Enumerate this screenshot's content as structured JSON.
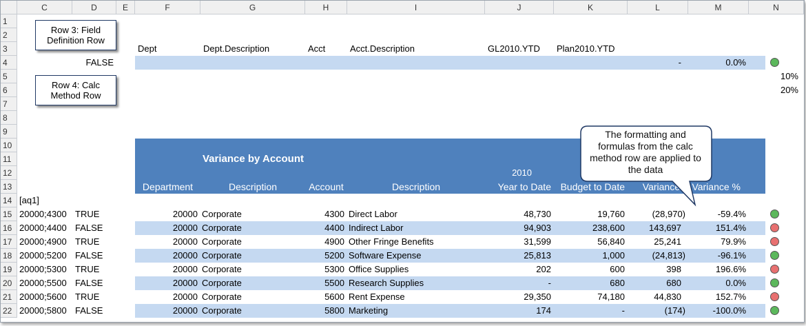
{
  "column_headers": [
    "C",
    "D",
    "E",
    "F",
    "G",
    "H",
    "I",
    "J",
    "K",
    "L",
    "M",
    "N"
  ],
  "row_numbers": [
    1,
    2,
    3,
    4,
    5,
    6,
    7,
    8,
    9,
    10,
    11,
    12,
    13,
    14,
    15,
    16,
    17,
    18,
    19,
    20,
    21,
    22
  ],
  "field_definition_row": [
    "Dept",
    "Dept.Description",
    "Acct",
    "Acct.Description",
    "GL2010.YTD",
    "Plan2010.YTD"
  ],
  "calc_method_row": {
    "flag": "FALSE",
    "variance": "-",
    "variance_pct": "0.0%",
    "status_color": "#5cb85c"
  },
  "thresholds": [
    "10%",
    "20%"
  ],
  "report": {
    "title": "Variance by Account",
    "year": "2010",
    "columns": [
      "Department",
      "Description",
      "Account",
      "Description",
      "Year to Date",
      "Budget to Date",
      "Variance",
      "Variance %"
    ],
    "query_name": "[aq1]",
    "rows": [
      {
        "key": "20000;4300",
        "flag": "TRUE",
        "dept": 20000,
        "dept_desc": "Corporate",
        "account": 4300,
        "acct_desc": "Direct Labor",
        "ytd": "48,730",
        "budget": "19,760",
        "variance": "(28,970)",
        "variance_pct": "-59.4%",
        "status_color": "#5cb85c"
      },
      {
        "key": "20000;4400",
        "flag": "FALSE",
        "dept": 20000,
        "dept_desc": "Corporate",
        "account": 4400,
        "acct_desc": "Indirect Labor",
        "ytd": "94,903",
        "budget": "238,600",
        "variance": "143,697",
        "variance_pct": "151.4%",
        "status_color": "#e87070"
      },
      {
        "key": "20000;4900",
        "flag": "TRUE",
        "dept": 20000,
        "dept_desc": "Corporate",
        "account": 4900,
        "acct_desc": "Other Fringe Benefits",
        "ytd": "31,599",
        "budget": "56,840",
        "variance": "25,241",
        "variance_pct": "79.9%",
        "status_color": "#e87070"
      },
      {
        "key": "20000;5200",
        "flag": "FALSE",
        "dept": 20000,
        "dept_desc": "Corporate",
        "account": 5200,
        "acct_desc": "Software Expense",
        "ytd": "25,813",
        "budget": "1,000",
        "variance": "(24,813)",
        "variance_pct": "-96.1%",
        "status_color": "#5cb85c"
      },
      {
        "key": "20000;5300",
        "flag": "TRUE",
        "dept": 20000,
        "dept_desc": "Corporate",
        "account": 5300,
        "acct_desc": "Office Supplies",
        "ytd": "202",
        "budget": "600",
        "variance": "398",
        "variance_pct": "196.6%",
        "status_color": "#e87070"
      },
      {
        "key": "20000;5500",
        "flag": "FALSE",
        "dept": 20000,
        "dept_desc": "Corporate",
        "account": 5500,
        "acct_desc": "Research Supplies",
        "ytd": "-",
        "budget": "680",
        "variance": "680",
        "variance_pct": "0.0%",
        "status_color": "#5cb85c"
      },
      {
        "key": "20000;5600",
        "flag": "TRUE",
        "dept": 20000,
        "dept_desc": "Corporate",
        "account": 5600,
        "acct_desc": "Rent Expense",
        "ytd": "29,350",
        "budget": "74,180",
        "variance": "44,830",
        "variance_pct": "152.7%",
        "status_color": "#e87070"
      },
      {
        "key": "20000;5800",
        "flag": "FALSE",
        "dept": 20000,
        "dept_desc": "Corporate",
        "account": 5800,
        "acct_desc": "Marketing",
        "ytd": "174",
        "budget": "-",
        "variance": "(174)",
        "variance_pct": "-100.0%",
        "status_color": "#5cb85c"
      }
    ]
  },
  "callouts": [
    {
      "text": "Row 3: Field Definition Row"
    },
    {
      "text": "Row 4: Calc Method Row"
    },
    {
      "text": "The formatting and formulas from the calc method row are applied to the data"
    }
  ]
}
